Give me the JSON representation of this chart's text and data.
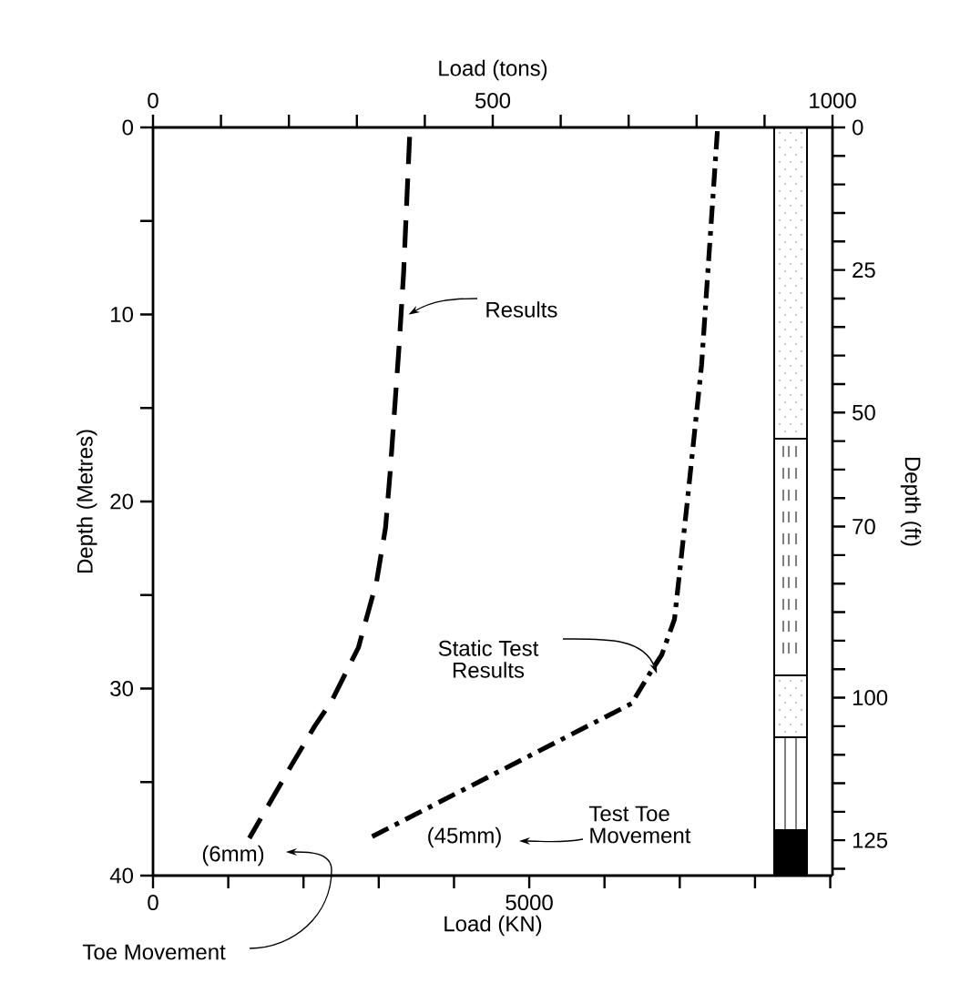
{
  "chart_data": {
    "type": "line",
    "xlabel": "Load (KN)",
    "ylabel": "Depth (Metres)",
    "x2label": "Load (tons)",
    "y2label": "Depth (ft)",
    "xlim": [
      0,
      9030
    ],
    "ylim": [
      40,
      0
    ],
    "x2lim": [
      0,
      1000
    ],
    "y2lim": [
      131.2,
      0
    ],
    "xticks": [
      0,
      {
        "value": 1000,
        "label": null
      },
      {
        "value": 2000,
        "label": null
      },
      {
        "value": 3000,
        "label": null
      },
      {
        "value": 4000,
        "label": null
      },
      5000,
      {
        "value": 6000,
        "label": null
      },
      {
        "value": 7000,
        "label": null
      },
      {
        "value": 8000,
        "label": null
      },
      {
        "value": 9000,
        "label": null
      }
    ],
    "yticks": [
      0,
      {
        "value": 5,
        "label": null
      },
      10,
      {
        "value": 15,
        "label": null
      },
      20,
      {
        "value": 25,
        "label": null
      },
      30,
      {
        "value": 35,
        "label": null
      },
      40
    ],
    "x2ticks": [
      0,
      {
        "value": 100,
        "label": null
      },
      {
        "value": 200,
        "label": null
      },
      {
        "value": 300,
        "label": null
      },
      {
        "value": 400,
        "label": null
      },
      500,
      {
        "value": 600,
        "label": null
      },
      {
        "value": 700,
        "label": null
      },
      {
        "value": 800,
        "label": null
      },
      {
        "value": 900,
        "label": null
      },
      1000
    ],
    "y2ticks": [
      0,
      {
        "value": 5,
        "label": null
      },
      {
        "value": 10,
        "label": null
      },
      {
        "value": 15,
        "label": null
      },
      {
        "value": 20,
        "label": null
      },
      25,
      {
        "value": 30,
        "label": null
      },
      {
        "value": 35,
        "label": null
      },
      {
        "value": 40,
        "label": null
      },
      {
        "value": 45,
        "label": null
      },
      50,
      {
        "value": 55,
        "label": null
      },
      {
        "value": 60,
        "label": null
      },
      {
        "value": 65,
        "label": null
      },
      70,
      {
        "value": 75,
        "label": null
      },
      {
        "value": 80,
        "label": null
      },
      {
        "value": 85,
        "label": null
      },
      {
        "value": 90,
        "label": null
      },
      {
        "value": 95,
        "label": null
      },
      100,
      {
        "value": 105,
        "label": null
      },
      {
        "value": 110,
        "label": null
      },
      {
        "value": 115,
        "label": null
      },
      {
        "value": 120,
        "label": null
      },
      125,
      {
        "value": 130,
        "label": null
      }
    ],
    "series": [
      {
        "color": "#000000",
        "line_style": "dashed",
        "x": [
          3410,
          3330,
          3270,
          3150,
          3090,
          2970,
          2730,
          2370,
          2150,
          1840,
          1280
        ],
        "values": [
          0.5,
          7.8,
          11.7,
          18.5,
          21.4,
          24.3,
          27.8,
          30.7,
          32,
          34.1,
          38
        ]
      },
      {
        "color": "#000000",
        "line_style": "dashdot",
        "x": [
          7500,
          7470,
          7290,
          7090,
          6930,
          6760,
          6600,
          6360,
          2870
        ],
        "values": [
          0.2,
          2,
          12.7,
          20.4,
          26.3,
          28.2,
          29.2,
          30.8,
          38
        ]
      }
    ],
    "annotations": [
      "(6mm)",
      "Toe Movement",
      "(45mm)",
      "Test Toe Movement",
      {
        "text": "Results",
        "x": 3300,
        "y": 10
      },
      {
        "text": "Static Test Results",
        "x": 6600,
        "y": 29.2
      }
    ]
  }
}
